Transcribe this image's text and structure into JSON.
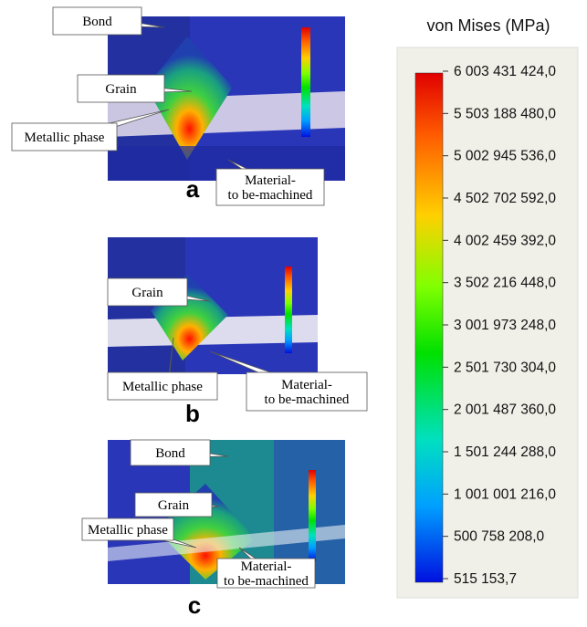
{
  "panels": [
    {
      "letter": "a",
      "callouts": [
        {
          "lines": [
            "Bond"
          ]
        },
        {
          "lines": [
            "Grain"
          ]
        },
        {
          "lines": [
            "Metallic phase"
          ]
        },
        {
          "lines": [
            "Material-",
            "to be-machined"
          ]
        }
      ]
    },
    {
      "letter": "b",
      "callouts": [
        {
          "lines": [
            "Grain"
          ]
        },
        {
          "lines": [
            "Metallic phase"
          ]
        },
        {
          "lines": [
            "Material-",
            "to be-machined"
          ]
        }
      ]
    },
    {
      "letter": "c",
      "callouts": [
        {
          "lines": [
            "Bond"
          ]
        },
        {
          "lines": [
            "Grain"
          ]
        },
        {
          "lines": [
            "Metallic phase"
          ]
        },
        {
          "lines": [
            "Material-",
            "to be-machined"
          ]
        }
      ]
    }
  ],
  "legend": {
    "title": "von Mises (MPa)",
    "labels": [
      "6 003 431 424,0",
      "5 503 188 480,0",
      "5 002 945 536,0",
      "4 502 702 592,0",
      "4 002 459 392,0",
      "3 502 216 448,0",
      "3 001 973 248,0",
      "2 501 730 304,0",
      "2 001 487 360,0",
      "1 501 244 288,0",
      "1 001 001 216,0",
      "500 758 208,0",
      "515 153,7"
    ]
  }
}
